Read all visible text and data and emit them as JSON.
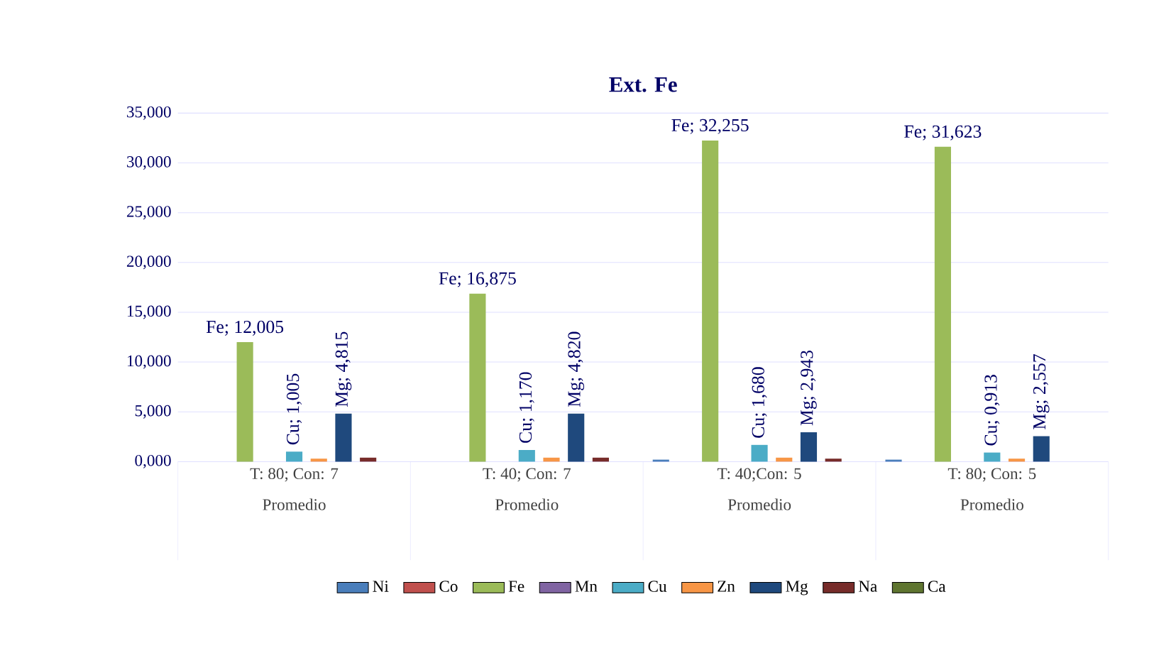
{
  "chart_data": {
    "type": "bar",
    "title": "Ext. Fe",
    "categories": [
      "T: 80; Con: 7",
      "T: 40; Con: 7",
      "T: 40;Con: 5",
      "T: 80; Con: 5"
    ],
    "annotations": [
      "Promedio",
      "Promedio",
      "Promedio",
      "Promedio"
    ],
    "series": [
      {
        "name": "Ni",
        "color": "#4a7ebb",
        "values": [
          0,
          0,
          0.2,
          0.2
        ]
      },
      {
        "name": "Co",
        "color": "#c0504d",
        "values": [
          0,
          0,
          0,
          0
        ]
      },
      {
        "name": "Fe",
        "color": "#9bbb59",
        "values": [
          12.005,
          16.875,
          32.255,
          31.623
        ],
        "value_labels": [
          "Fe; 12,005",
          "Fe; 16,875",
          "Fe; 32,255",
          "Fe; 31,623"
        ]
      },
      {
        "name": "Mn",
        "color": "#8064a2",
        "values": [
          0,
          0,
          0,
          0
        ]
      },
      {
        "name": "Cu",
        "color": "#4bacc6",
        "values": [
          1.005,
          1.17,
          1.68,
          0.913
        ],
        "value_labels": [
          "Cu; 1,005",
          "Cu; 1,170",
          "Cu; 1,680",
          "Cu; 0,913"
        ]
      },
      {
        "name": "Zn",
        "color": "#f79646",
        "values": [
          0.3,
          0.4,
          0.4,
          0.3
        ]
      },
      {
        "name": "Mg",
        "color": "#1f497d",
        "values": [
          4.815,
          4.82,
          2.943,
          2.557
        ],
        "value_labels": [
          "Mg; 4,815",
          "Mg; 4,820",
          "Mg; 2,943",
          "Mg; 2,557"
        ]
      },
      {
        "name": "Na",
        "color": "#772c2a",
        "values": [
          0.4,
          0.4,
          0.3,
          0
        ]
      },
      {
        "name": "Ca",
        "color": "#5f7530",
        "values": [
          0,
          0,
          0,
          0
        ]
      }
    ],
    "ylim": [
      0,
      35
    ],
    "yticks": [
      {
        "value": 0,
        "label": "0,000"
      },
      {
        "value": 5,
        "label": "5,000"
      },
      {
        "value": 10,
        "label": "10,000"
      },
      {
        "value": 15,
        "label": "15,000"
      },
      {
        "value": 20,
        "label": "20,000"
      },
      {
        "value": 25,
        "label": "25,000"
      },
      {
        "value": 30,
        "label": "30,000"
      },
      {
        "value": 35,
        "label": "35,000"
      }
    ],
    "grid": "y",
    "legend": "bottom"
  }
}
